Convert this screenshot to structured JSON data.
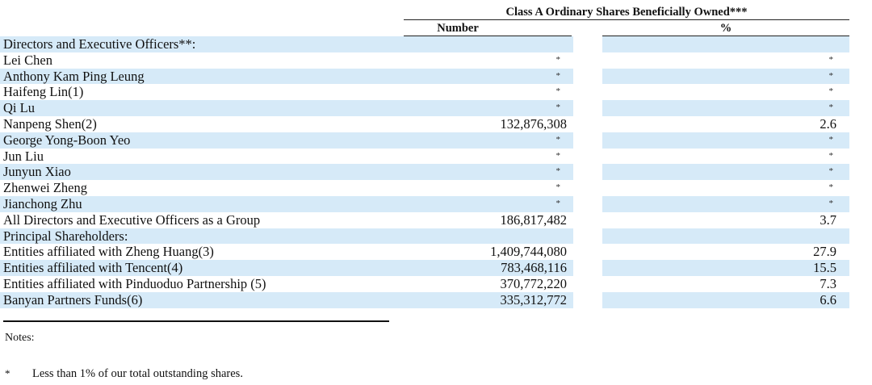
{
  "header": {
    "group_title": "Class A Ordinary Shares Beneficially Owned***",
    "col_number": "Number",
    "col_percent": "%"
  },
  "rows": [
    {
      "name": "Directors and Executive Officers**:",
      "number": "",
      "percent": "",
      "shaded": true
    },
    {
      "name": "Lei Chen",
      "number": "*",
      "percent": "*",
      "shaded": false
    },
    {
      "name": "Anthony Kam Ping Leung",
      "number": "*",
      "percent": "*",
      "shaded": true
    },
    {
      "name": "Haifeng Lin(1)",
      "number": "*",
      "percent": "*",
      "shaded": false
    },
    {
      "name": "Qi Lu",
      "number": "*",
      "percent": "*",
      "shaded": true
    },
    {
      "name": "Nanpeng Shen(2)",
      "number": "132,876,308",
      "percent": "2.6",
      "shaded": false
    },
    {
      "name": "George Yong-Boon Yeo",
      "number": "*",
      "percent": "*",
      "shaded": true
    },
    {
      "name": "Jun Liu",
      "number": "*",
      "percent": "*",
      "shaded": false
    },
    {
      "name": "Junyun Xiao",
      "number": "*",
      "percent": "*",
      "shaded": true
    },
    {
      "name": "Zhenwei Zheng",
      "number": "*",
      "percent": "*",
      "shaded": false
    },
    {
      "name": "Jianchong Zhu",
      "number": "*",
      "percent": "*",
      "shaded": true
    },
    {
      "name": "All Directors and Executive Officers as a Group",
      "number": "186,817,482",
      "percent": "3.7",
      "shaded": false
    },
    {
      "name": "Principal Shareholders:",
      "number": "",
      "percent": "",
      "shaded": true
    },
    {
      "name": "Entities affiliated with Zheng Huang(3)",
      "number": "1,409,744,080",
      "percent": "27.9",
      "shaded": false
    },
    {
      "name": "Entities affiliated with Tencent(4)",
      "number": "783,468,116",
      "percent": "15.5",
      "shaded": true
    },
    {
      "name": "Entities affiliated with Pinduoduo Partnership (5)",
      "number": "370,772,220",
      "percent": "7.3",
      "shaded": false
    },
    {
      "name": "Banyan Partners Funds(6)",
      "number": "335,312,772",
      "percent": "6.6",
      "shaded": true
    }
  ],
  "notes": {
    "title": "Notes:",
    "footnote_mark": "*",
    "footnote_text": "Less than 1% of our total outstanding shares."
  }
}
